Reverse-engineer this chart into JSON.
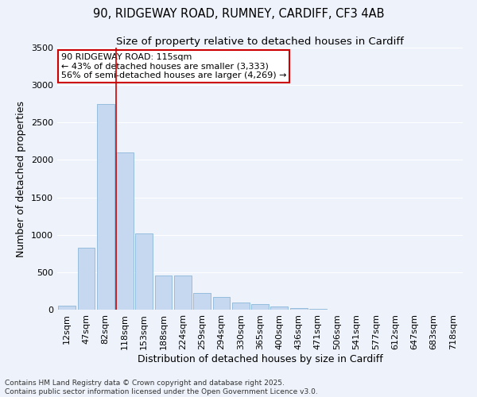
{
  "title_line1": "90, RIDGEWAY ROAD, RUMNEY, CARDIFF, CF3 4AB",
  "title_line2": "Size of property relative to detached houses in Cardiff",
  "xlabel": "Distribution of detached houses by size in Cardiff",
  "ylabel": "Number of detached properties",
  "categories": [
    "12sqm",
    "47sqm",
    "82sqm",
    "118sqm",
    "153sqm",
    "188sqm",
    "224sqm",
    "259sqm",
    "294sqm",
    "330sqm",
    "365sqm",
    "400sqm",
    "436sqm",
    "471sqm",
    "506sqm",
    "541sqm",
    "577sqm",
    "612sqm",
    "647sqm",
    "683sqm",
    "718sqm"
  ],
  "values": [
    50,
    830,
    2750,
    2100,
    1020,
    460,
    460,
    220,
    175,
    100,
    70,
    45,
    25,
    10,
    5,
    3,
    2,
    1,
    1,
    0,
    0
  ],
  "bar_color": "#c5d8f0",
  "bar_edge_color": "#7bafd4",
  "vline_color": "#cc0000",
  "annotation_text": "90 RIDGEWAY ROAD: 115sqm\n← 43% of detached houses are smaller (3,333)\n56% of semi-detached houses are larger (4,269) →",
  "annotation_box_color": "#ffffff",
  "annotation_box_edge": "#cc0000",
  "ylim": [
    0,
    3500
  ],
  "yticks": [
    0,
    500,
    1000,
    1500,
    2000,
    2500,
    3000,
    3500
  ],
  "footnote": "Contains HM Land Registry data © Crown copyright and database right 2025.\nContains public sector information licensed under the Open Government Licence v3.0.",
  "bg_color": "#eef2fa",
  "grid_color": "#ffffff",
  "title_fontsize": 10.5,
  "subtitle_fontsize": 9.5,
  "axis_label_fontsize": 9,
  "tick_fontsize": 8,
  "annot_fontsize": 8,
  "footnote_fontsize": 6.5
}
